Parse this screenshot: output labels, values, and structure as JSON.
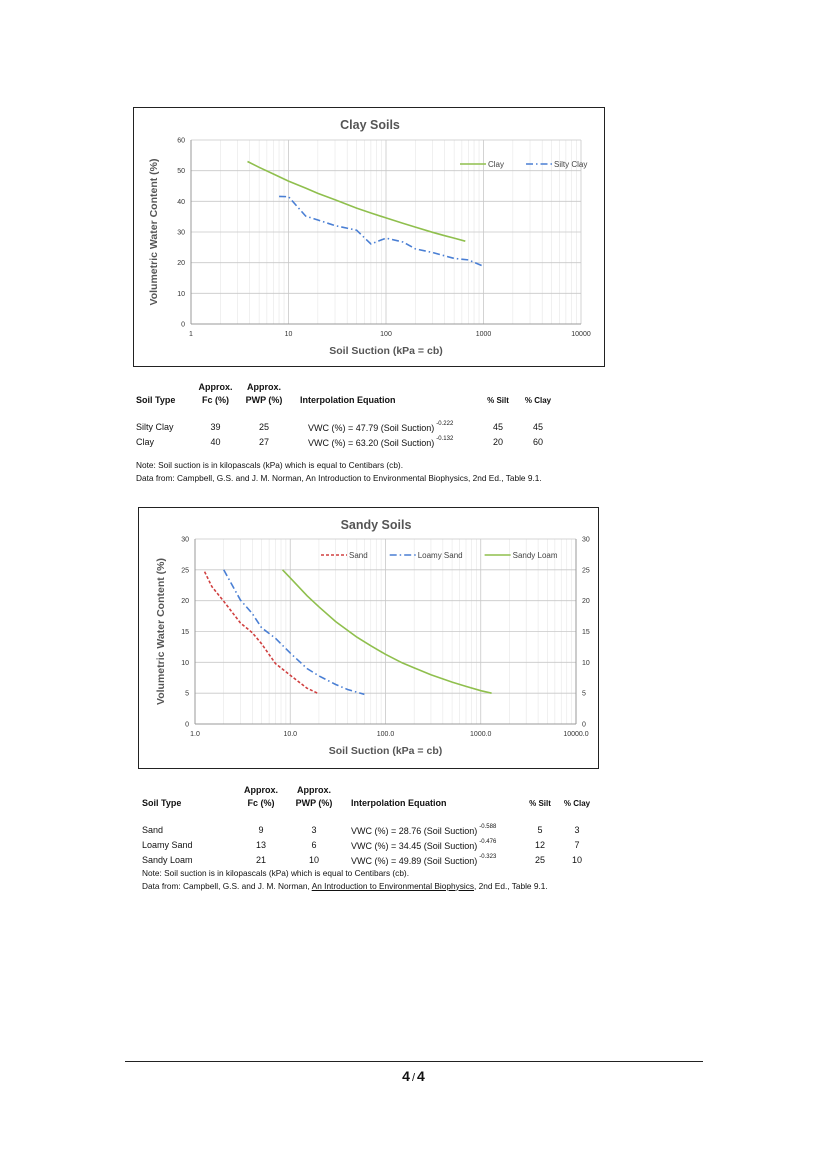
{
  "chart_data": [
    {
      "type": "line",
      "title": "Clay Soils",
      "xlabel": "Soil Suction (kPa = cb)",
      "ylabel": "Volumetric Water Content  (%)",
      "x_scale": "log",
      "xlim": [
        1,
        10000
      ],
      "ylim": [
        0,
        60
      ],
      "x_ticks": [
        "1",
        "10",
        "100",
        "1000",
        "10000"
      ],
      "y_ticks": [
        "0",
        "10",
        "20",
        "30",
        "40",
        "50",
        "60"
      ],
      "grid": true,
      "legend_position": "top-right",
      "series": [
        {
          "name": "Clay",
          "color": "#8fbf4d",
          "style": "solid",
          "x": [
            3.8,
            5,
            7,
            10,
            15,
            20,
            30,
            50,
            70,
            100,
            150,
            200,
            300,
            400,
            500,
            650
          ],
          "y": [
            53.0,
            51.1,
            48.9,
            46.6,
            44.3,
            42.6,
            40.5,
            37.8,
            36.2,
            34.6,
            32.8,
            31.6,
            29.9,
            28.8,
            28.0,
            27.0
          ]
        },
        {
          "name": "Silty Clay",
          "color": "#4a7fd4",
          "style": "dashdot",
          "x": [
            8,
            10,
            15,
            20,
            30,
            50,
            70,
            100,
            150,
            200,
            300,
            500,
            700,
            1000
          ],
          "y": [
            41.6,
            41.5,
            35.2,
            33.9,
            32.1,
            30.6,
            26.1,
            28.0,
            26.7,
            24.5,
            23.3,
            21.4,
            20.9,
            18.8
          ]
        }
      ]
    },
    {
      "type": "line",
      "title": "Sandy Soils",
      "xlabel": "Soil Suction (kPa = cb)",
      "ylabel": "Volumetric Water Content  (%)",
      "x_scale": "log",
      "xlim": [
        1,
        10000
      ],
      "ylim": [
        0,
        30
      ],
      "x_ticks": [
        "1.0",
        "10.0",
        "100.0",
        "1000.0",
        "10000.0"
      ],
      "y_ticks": [
        "0",
        "5",
        "10",
        "15",
        "20",
        "25",
        "30"
      ],
      "grid": true,
      "legend_position": "top",
      "series": [
        {
          "name": "Sand",
          "color": "#d04040",
          "style": "dashed",
          "x": [
            1.26,
            1.5,
            2,
            3,
            4,
            5,
            7,
            10,
            15,
            20
          ],
          "y": [
            24.7,
            22.3,
            19.9,
            16.4,
            14.8,
            13.0,
            9.8,
            7.9,
            5.8,
            4.9
          ]
        },
        {
          "name": "Loamy Sand",
          "color": "#4a7fd4",
          "style": "dashdot",
          "x": [
            2,
            3,
            4,
            5,
            7,
            10,
            15,
            20,
            30,
            40,
            60
          ],
          "y": [
            25.0,
            20.1,
            17.9,
            15.6,
            13.9,
            11.5,
            9.0,
            7.8,
            6.4,
            5.6,
            4.8
          ]
        },
        {
          "name": "Sandy Loam",
          "color": "#8fbf4d",
          "style": "solid",
          "x": [
            8.3,
            10,
            15,
            20,
            30,
            50,
            70,
            100,
            150,
            200,
            300,
            500,
            700,
            1000,
            1300
          ],
          "y": [
            25.0,
            23.7,
            20.8,
            19.0,
            16.6,
            14.1,
            12.7,
            11.3,
            9.9,
            9.1,
            8.0,
            6.8,
            6.1,
            5.4,
            5.0
          ]
        }
      ]
    }
  ],
  "clay_table": {
    "headers": {
      "soil_type": "Soil Type",
      "fc_top": "Approx.",
      "fc_bottom": "Fc (%)",
      "pwp_top": "Approx.",
      "pwp_bottom": "PWP (%)",
      "equation": "Interpolation Equation",
      "silt": "% Silt",
      "clay": "% Clay"
    },
    "rows": [
      {
        "soil_type": "Silty Clay",
        "fc": "39",
        "pwp": "25",
        "equation": "VWC (%) = 47.79 (Soil Suction)",
        "exponent": "-0.222",
        "silt": "45",
        "clay": "45"
      },
      {
        "soil_type": "Clay",
        "fc": "40",
        "pwp": "27",
        "equation": "VWC (%) = 63.20 (Soil Suction)",
        "exponent": "-0.132",
        "silt": "20",
        "clay": "60"
      }
    ],
    "note_line1": "Note:  Soil suction is in kilopascals (kPa) which is equal to Centibars (cb).",
    "note_line2": "Data from: Campbell, G.S. and J. M. Norman, An Introduction to Environmental Biophysics, 2nd Ed., Table 9.1."
  },
  "sandy_table": {
    "headers": {
      "soil_type": "Soil Type",
      "fc_top": "Approx.",
      "fc_bottom": "Fc (%)",
      "pwp_top": "Approx.",
      "pwp_bottom": "PWP (%)",
      "equation": "Interpolation Equation",
      "silt": "% Silt",
      "clay": "% Clay"
    },
    "rows": [
      {
        "soil_type": "Sand",
        "fc": "9",
        "pwp": "3",
        "equation": "VWC (%) = 28.76 (Soil Suction)",
        "exponent": "-0.588",
        "silt": "5",
        "clay": "3"
      },
      {
        "soil_type": "Loamy Sand",
        "fc": "13",
        "pwp": "6",
        "equation": "VWC (%) = 34.45 (Soil Suction)",
        "exponent": "-0.476",
        "silt": "12",
        "clay": "7"
      },
      {
        "soil_type": "Sandy Loam",
        "fc": "21",
        "pwp": "10",
        "equation": "VWC (%) = 49.89 (Soil Suction)",
        "exponent": "-0.323",
        "silt": "25",
        "clay": "10"
      }
    ],
    "note_line1": "Note:  Soil suction is in kilopascals (kPa) which is equal to Centibars (cb).",
    "note_prefix": "Data from: Campbell, G.S. and J. M. Norman, ",
    "note_book": "An Introduction to Environmental Biophysics,",
    "note_suffix": " 2nd Ed., Table 9.1."
  },
  "footer": {
    "page": "4",
    "separator": "/",
    "total": "4"
  }
}
